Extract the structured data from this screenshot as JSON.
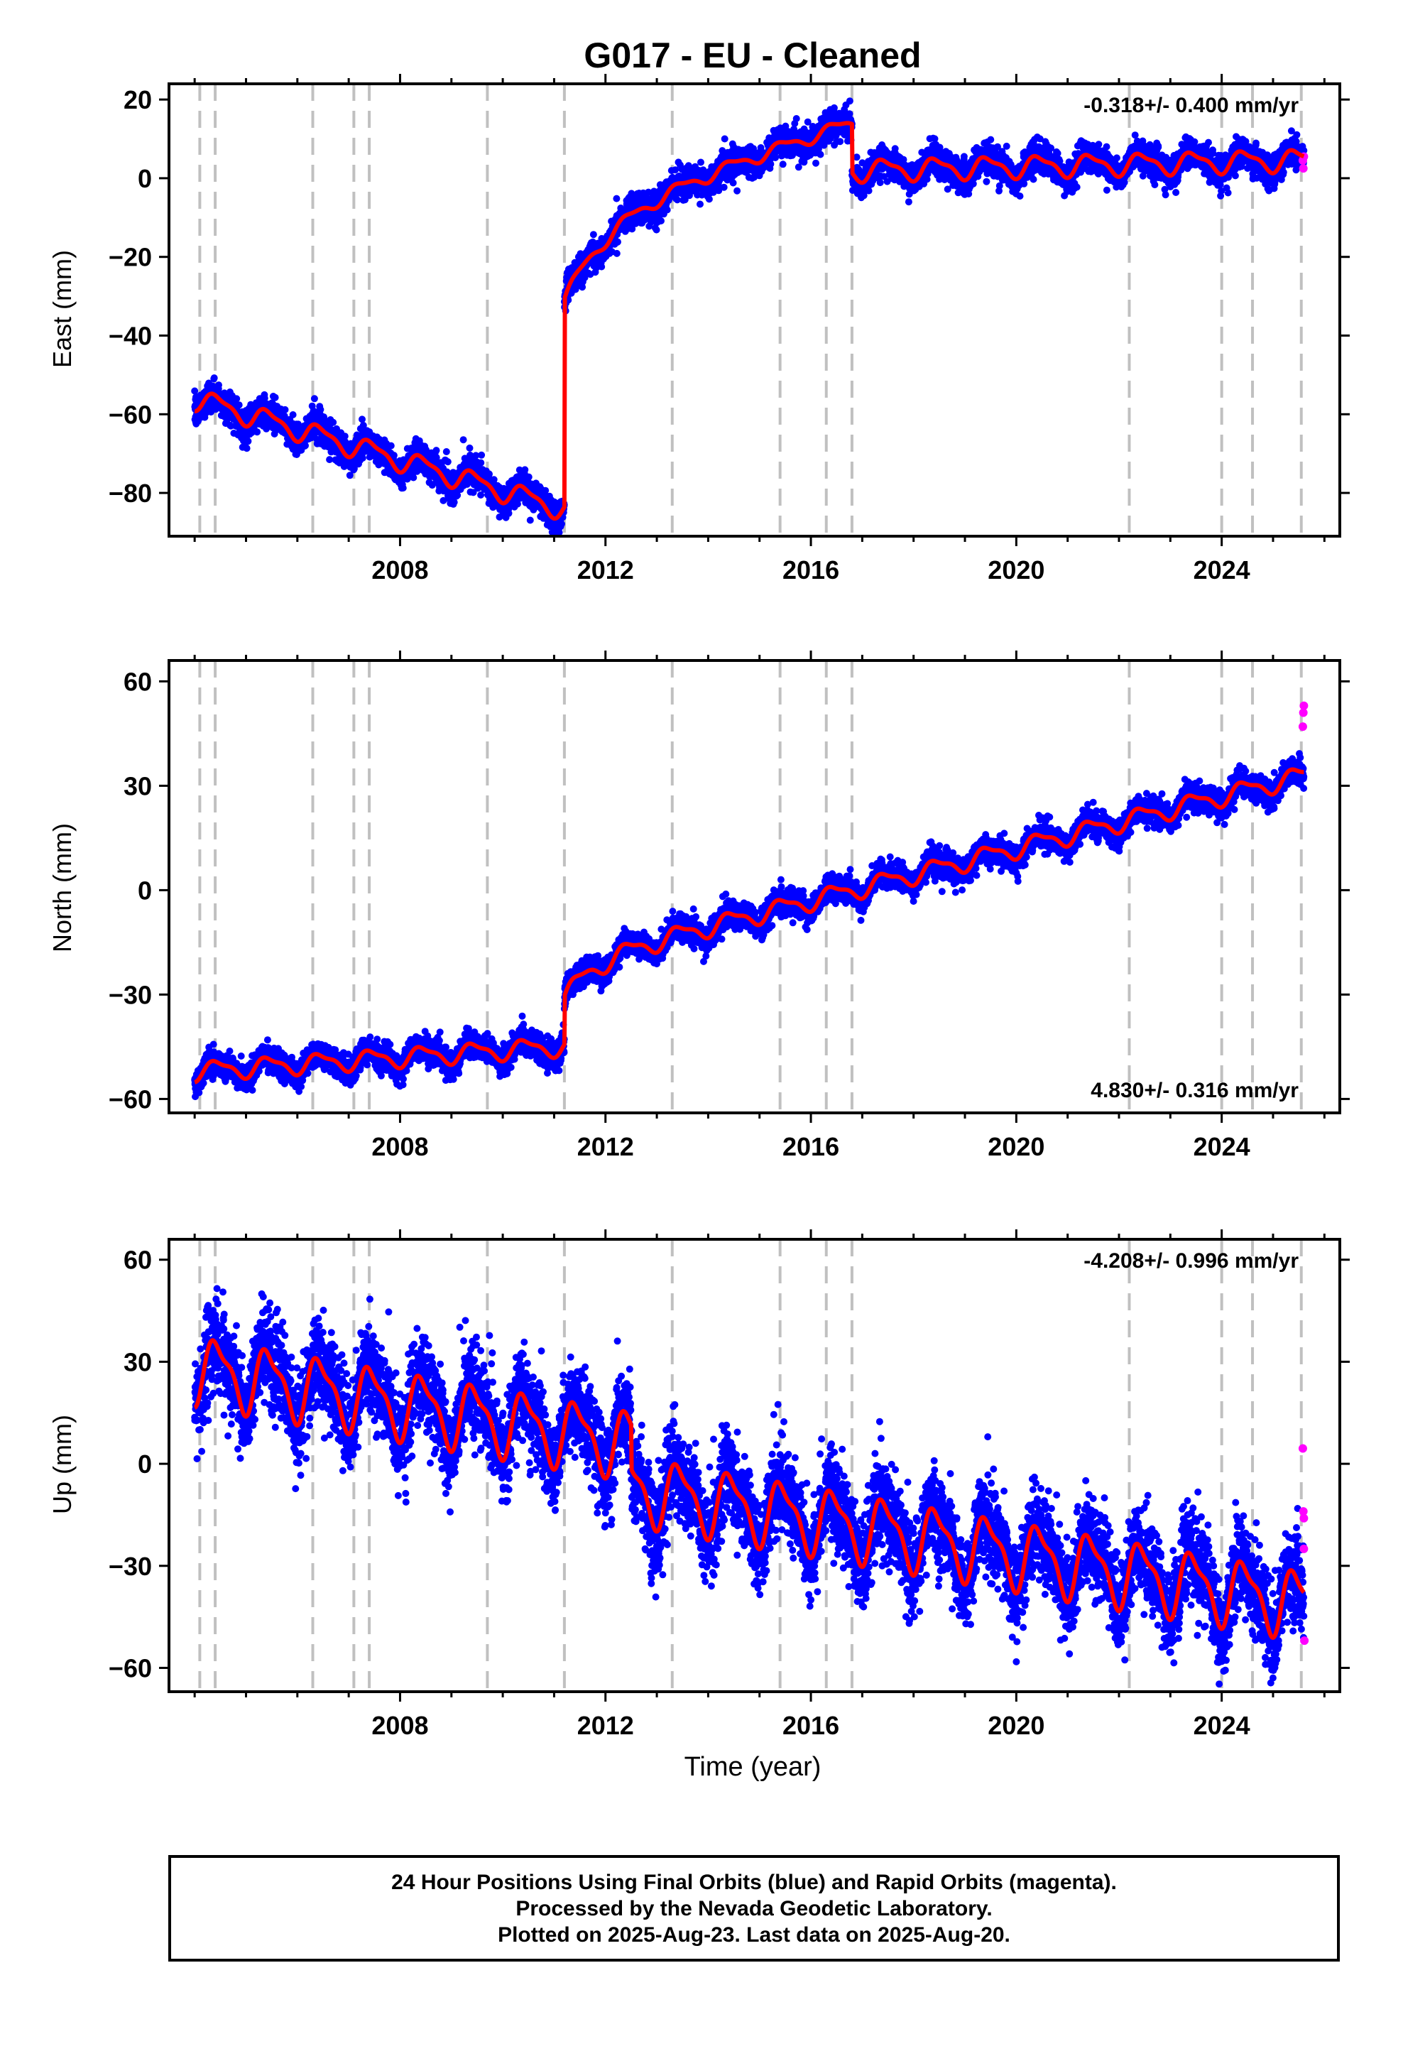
{
  "chart_data": [
    {
      "type": "scatter",
      "title": "G017  - EU - Cleaned",
      "ylabel": "East (mm)",
      "xlabel": "",
      "xlim": [
        2003.5,
        2026.3
      ],
      "ylim": [
        -91,
        24
      ],
      "yticks": [
        20,
        0,
        -20,
        -40,
        -60,
        -80
      ],
      "ytick_labels": [
        "20",
        "0",
        "−20",
        "−40",
        "−60",
        "−80"
      ],
      "xticks": [
        2008,
        2012,
        2016,
        2020,
        2024
      ],
      "xtick_labels": [
        "2008",
        "2012",
        "2016",
        "2020",
        "2024"
      ],
      "rate_text": "-0.318+/- 0.400 mm/yr",
      "rate_position": "top-right",
      "offset_epochs": [
        2004.1,
        2004.4,
        2006.3,
        2007.1,
        2007.4,
        2009.7,
        2011.2,
        2013.3,
        2015.4,
        2016.3,
        2016.8,
        2022.2,
        2024.0,
        2024.6,
        2025.55
      ],
      "model": {
        "name": "model",
        "color": "#ff0000",
        "segments": [
          {
            "start": 2004.0,
            "end": 2011.2,
            "y0": -56,
            "rate": -3.9,
            "amp": 2.5
          },
          {
            "start": 2011.2,
            "end": 2016.8,
            "y0": -31,
            "rate": 4.5,
            "amp": 1.5,
            "recovery": 20,
            "tau": 0.9
          },
          {
            "start": 2016.8,
            "end": 2025.6,
            "y0": 2,
            "rate": 0.3,
            "amp": 2.5
          }
        ],
        "steps": [
          {
            "x": 2011.2,
            "from": -81,
            "to": -31
          },
          {
            "x": 2016.8,
            "from": 17,
            "to": 2
          }
        ]
      },
      "series": [
        {
          "name": "Final Orbits",
          "color": "#0000ff",
          "x_range": [
            2004.0,
            2025.6
          ],
          "noise": 1.8
        },
        {
          "name": "Rapid Orbits",
          "color": "#ff00ff",
          "points": [
            [
              2025.58,
              4.5
            ],
            [
              2025.59,
              2.5
            ],
            [
              2025.6,
              5.5
            ]
          ]
        }
      ]
    },
    {
      "type": "scatter",
      "title": "",
      "ylabel": "North (mm)",
      "xlabel": "",
      "xlim": [
        2003.5,
        2026.3
      ],
      "ylim": [
        -64,
        66
      ],
      "yticks": [
        60,
        30,
        0,
        -30,
        -60
      ],
      "ytick_labels": [
        "60",
        "30",
        "0",
        "−30",
        "−60"
      ],
      "xticks": [
        2008,
        2012,
        2016,
        2020,
        2024
      ],
      "xtick_labels": [
        "2008",
        "2012",
        "2016",
        "2020",
        "2024"
      ],
      "rate_text": "4.830+/- 0.316 mm/yr",
      "rate_position": "bottom-right",
      "offset_epochs": [
        2004.1,
        2004.4,
        2006.3,
        2007.1,
        2007.4,
        2009.7,
        2011.2,
        2013.3,
        2015.4,
        2016.3,
        2016.8,
        2022.2,
        2024.0,
        2024.6,
        2025.55
      ],
      "model": {
        "name": "model",
        "color": "#ff0000",
        "segments": [
          {
            "start": 2004.0,
            "end": 2011.2,
            "y0": -52,
            "rate": 1.0,
            "amp": 2.5
          },
          {
            "start": 2011.2,
            "end": 2025.6,
            "y0": -31,
            "rate": 3.75,
            "amp": 2.5,
            "recovery": 10,
            "tau": 0.6
          }
        ],
        "steps": [
          {
            "x": 2011.2,
            "from": -45,
            "to": -31
          }
        ]
      },
      "series": [
        {
          "name": "Final Orbits",
          "color": "#0000ff",
          "x_range": [
            2004.0,
            2025.6
          ],
          "noise": 1.8
        },
        {
          "name": "Rapid Orbits",
          "color": "#ff00ff",
          "points": [
            [
              2025.58,
              47
            ],
            [
              2025.59,
              51
            ],
            [
              2025.6,
              53
            ]
          ]
        }
      ]
    },
    {
      "type": "scatter",
      "title": "",
      "ylabel": "Up (mm)",
      "xlabel": "Time (year)",
      "xlim": [
        2003.5,
        2026.3
      ],
      "ylim": [
        -67,
        66
      ],
      "yticks": [
        60,
        30,
        0,
        -30,
        -60
      ],
      "ytick_labels": [
        "60",
        "30",
        "0",
        "−30",
        "−60"
      ],
      "xticks": [
        2008,
        2012,
        2016,
        2020,
        2024
      ],
      "xtick_labels": [
        "2008",
        "2012",
        "2016",
        "2020",
        "2024"
      ],
      "rate_text": "-4.208+/- 0.996 mm/yr",
      "rate_position": "top-right",
      "offset_epochs": [
        2004.1,
        2004.4,
        2006.3,
        2007.1,
        2007.4,
        2009.7,
        2011.2,
        2013.3,
        2015.4,
        2016.3,
        2016.8,
        2022.2,
        2024.0,
        2024.6,
        2025.55
      ],
      "model": {
        "name": "model",
        "color": "#ff0000",
        "segments": [
          {
            "start": 2004.0,
            "end": 2025.6,
            "y0": 28,
            "rate": -2.6,
            "amp": 9,
            "step_drop": {
              "x": 2012.5,
              "amount": 13
            }
          }
        ],
        "steps": []
      },
      "series": [
        {
          "name": "Final Orbits",
          "color": "#0000ff",
          "x_range": [
            2004.0,
            2025.6
          ],
          "noise": 6.5
        },
        {
          "name": "Rapid Orbits",
          "color": "#ff00ff",
          "points": [
            [
              2025.58,
              4.5
            ],
            [
              2025.59,
              -14
            ],
            [
              2025.6,
              -16
            ],
            [
              2025.6,
              -25
            ],
            [
              2025.61,
              -52
            ]
          ]
        }
      ]
    }
  ],
  "footer": {
    "line1": "24 Hour Positions Using Final Orbits (blue) and Rapid Orbits (magenta).",
    "line2": "Processed by the Nevada Geodetic Laboratory.",
    "line3": "Plotted on 2025-Aug-23. Last data on 2025-Aug-20."
  }
}
